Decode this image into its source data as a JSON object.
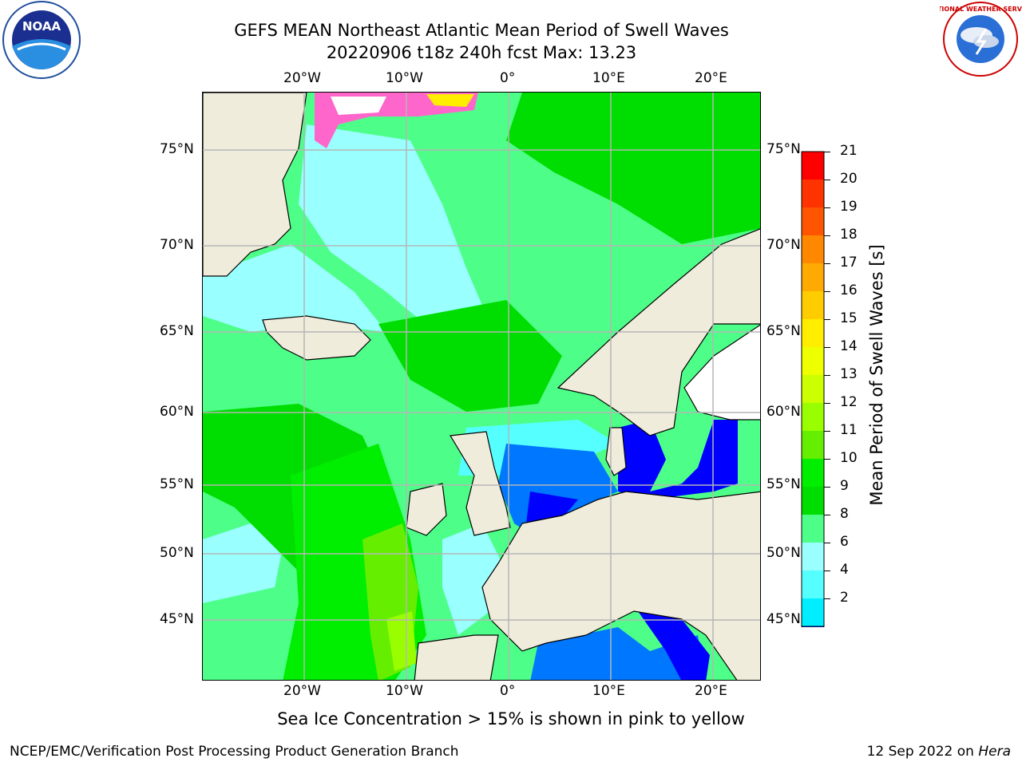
{
  "header": {
    "title_line1": "GEFS MEAN Northeast Atlantic Mean Period of Swell Waves",
    "title_line2": "20220906 t18z 240h fcst   Max: 13.23"
  },
  "logos": {
    "left": {
      "icon": "noaa-logo-icon",
      "text": "NOAA"
    },
    "right": {
      "icon": "nws-logo-icon",
      "text": "NATIONAL WEATHER SERVICE"
    }
  },
  "map": {
    "lon_ticks": [
      "20°W",
      "10°W",
      "0°",
      "10°E",
      "20°E"
    ],
    "lat_ticks": [
      "75°N",
      "70°N",
      "65°N",
      "60°N",
      "55°N",
      "50°N",
      "45°N"
    ],
    "land_color": "#efecdc",
    "grid_color": "#b5b5b5"
  },
  "colorbar": {
    "label": "Mean Period of Swell Waves [s]",
    "ticks": [
      "21",
      "20",
      "19",
      "18",
      "17",
      "16",
      "15",
      "14",
      "13",
      "12",
      "11",
      "10",
      "9",
      "8",
      "6",
      "4",
      "2"
    ],
    "colors": [
      "#ff0000",
      "#ff3300",
      "#ff5500",
      "#ff8800",
      "#ffaa00",
      "#ffcc00",
      "#ffee00",
      "#eeff00",
      "#ccff00",
      "#99ff00",
      "#66ee00",
      "#00ee00",
      "#00dd00",
      "#4dff88",
      "#99ffff",
      "#55ffff",
      "#00eeff",
      "#0077ff"
    ],
    "extend_color": "#0000ff"
  },
  "footer": {
    "note": "Sea Ice Concentration > 15% is shown in pink to yellow",
    "left": "NCEP/EMC/Verification Post Processing Product Generation Branch",
    "right_prefix": "12 Sep 2022 on ",
    "right_machine": "Hera"
  }
}
